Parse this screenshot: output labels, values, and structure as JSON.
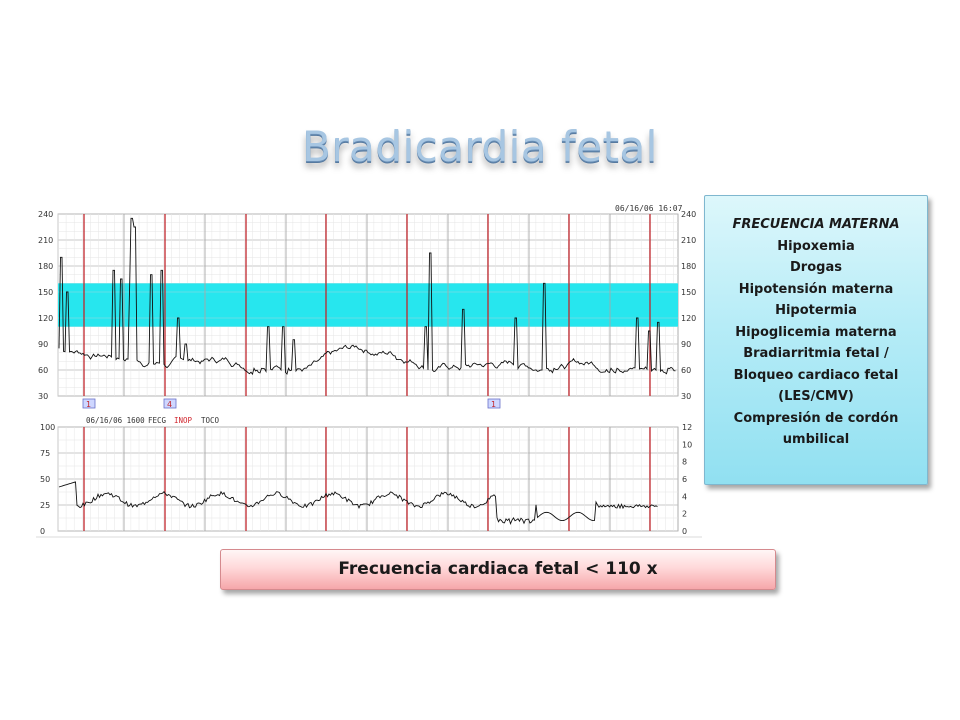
{
  "title": "Bradicardia fetal",
  "monitor": {
    "header_timestamp": "06/16/06 16:07",
    "toco_header": {
      "time": "06/16/06 1600",
      "fecg": "FECG",
      "inop": "INOP",
      "toco": "TOCO"
    },
    "markers": [
      "1",
      "4",
      "1"
    ],
    "fhr_axis_ticks": [
      "240",
      "210",
      "180",
      "150",
      "120",
      "90",
      "60",
      "30"
    ],
    "toco_left_ticks": [
      "100",
      "75",
      "50",
      "25",
      "0"
    ],
    "toco_right_ticks": [
      "12",
      "10",
      "8",
      "6",
      "4",
      "2",
      "0"
    ],
    "normal_band_color": "#27e6ee",
    "minute_line_color": "#c0272d"
  },
  "causes": {
    "heading": "FRECUENCIA   MATERNA",
    "items": [
      "Hipoxemia",
      "Drogas",
      "Hipotensión materna",
      "Hipotermia",
      "Hipoglicemia materna",
      "Bradiarritmia fetal /",
      "Bloqueo cardiaco fetal",
      "(LES/CMV)",
      "Compresión de cordón",
      "umbilical"
    ]
  },
  "footer_label": "Frecuencia cardiaca fetal < 110 x"
}
